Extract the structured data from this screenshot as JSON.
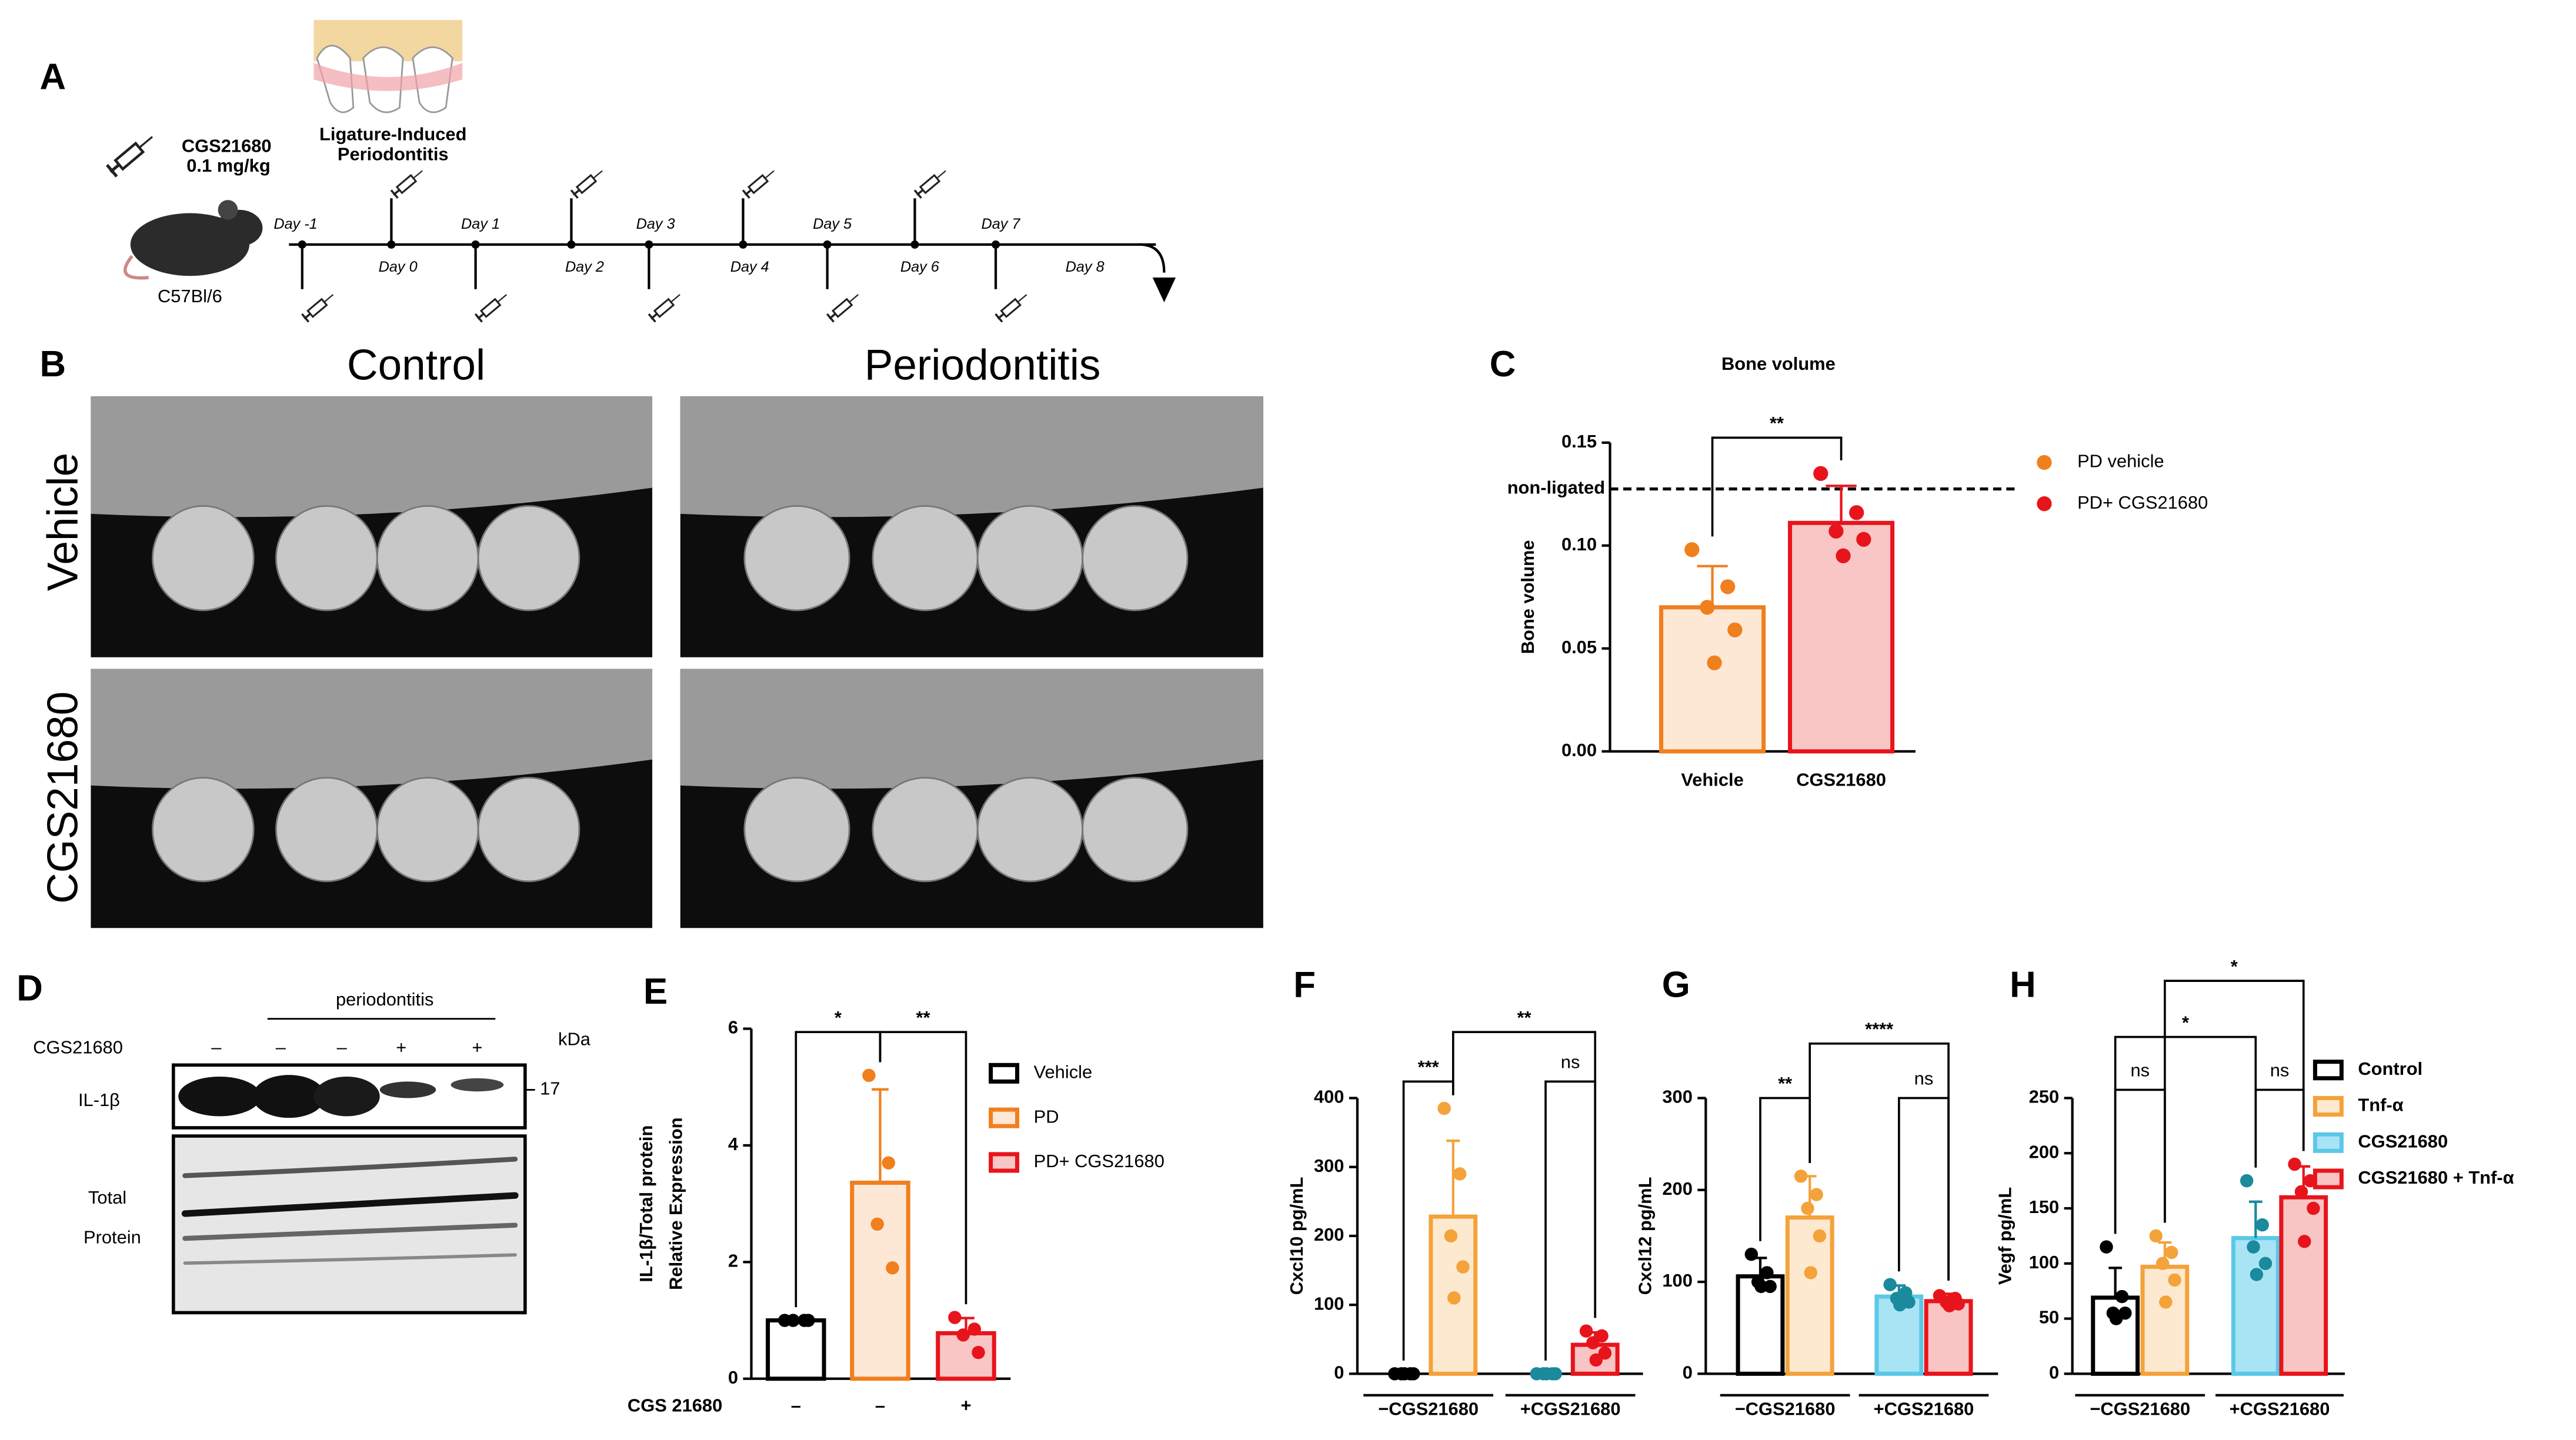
{
  "panel_labels": [
    "A",
    "B",
    "C",
    "D",
    "E",
    "F",
    "G",
    "H"
  ],
  "timeline": {
    "drug": "CGS21680",
    "dose": "0.1 mg/kg",
    "strain": "C57Bl/6",
    "model": [
      "Ligature-Induced",
      "Periodontitis"
    ],
    "days": [
      "Day -1",
      "Day 0",
      "Day 1",
      "Day 2",
      "Day 3",
      "Day 4",
      "Day 5",
      "Day 6",
      "Day 7",
      "Day 8"
    ]
  },
  "micro_ct": {
    "columns": [
      "Control",
      "Periodontitis"
    ],
    "rows": [
      "Vehicle",
      "CGS21680"
    ]
  },
  "western": {
    "group": "periodontitis",
    "treatment": "CGS21680",
    "lanes": [
      "–",
      "–",
      "–",
      "+",
      "+"
    ],
    "unit": "kDa",
    "marker": "17",
    "band_labels": [
      [
        "IL-1β"
      ],
      [
        "Total",
        "Protein"
      ]
    ]
  },
  "chart_data": [
    {
      "type": "bar",
      "title": "Bone volume",
      "ylabel": [
        "Bone volume"
      ],
      "categories": [
        "Vehicle",
        "CGS21680"
      ],
      "values": [
        0.07,
        0.111
      ],
      "errors": [
        0.02,
        0.018
      ],
      "points": [
        [
          0.098,
          0.08,
          0.07,
          0.059,
          0.043
        ],
        [
          0.135,
          0.116,
          0.107,
          0.103,
          0.095
        ]
      ],
      "colors": [
        "#f07f1e",
        "#e8141c"
      ],
      "fills": [
        "#fde8d6",
        "#f9c6c6"
      ],
      "legend": [
        "PD vehicle",
        "PD+ CGS21680"
      ],
      "reference": {
        "label": "non-ligated",
        "value": 0.1275
      },
      "comparisons": [
        {
          "pair": [
            0,
            1
          ],
          "label": "**"
        }
      ],
      "ylim": [
        0,
        0.15
      ],
      "yticks": [
        {
          "value": 0,
          "label": "0.00"
        },
        {
          "value": 0.05,
          "label": "0.05"
        },
        {
          "value": 0.1,
          "label": "0.10"
        },
        {
          "value": 0.15,
          "label": "0.15"
        }
      ]
    },
    {
      "type": "bar",
      "ylabel": [
        "IL-1β/Total protein",
        "Relative Expression"
      ],
      "xlabel": "CGS 21680",
      "categories": [
        "–",
        "–",
        "+"
      ],
      "values": [
        1,
        3.36,
        0.78
      ],
      "errors": [
        0,
        1.6,
        0.26
      ],
      "points": [
        [
          1,
          1,
          1,
          1
        ],
        [
          5.2,
          3.7,
          2.65,
          1.9
        ],
        [
          1.05,
          0.85,
          0.75,
          0.45
        ]
      ],
      "colors": [
        "#000000",
        "#f07f1e",
        "#e8141c"
      ],
      "fills": [
        "#ffffff",
        "#fde8d6",
        "#f9c6c6"
      ],
      "legend": [
        "Vehicle",
        "PD",
        "PD+ CGS21680"
      ],
      "comparisons": [
        {
          "pair": [
            0,
            1
          ],
          "label": "*"
        },
        {
          "pair": [
            1,
            2
          ],
          "label": "**"
        }
      ],
      "ylim": [
        0,
        6
      ],
      "yticks": [
        0,
        2,
        4,
        6
      ]
    },
    {
      "type": "bar",
      "ylabel": [
        "Cxcl10 pg/mL"
      ],
      "groups": [
        "−CGS21680",
        "+CGS21680"
      ],
      "values": [
        0,
        228,
        0,
        42
      ],
      "errors": [
        0,
        110,
        0,
        18
      ],
      "points": [
        [
          0,
          0,
          0,
          0,
          0
        ],
        [
          385,
          290,
          200,
          155,
          110
        ],
        [
          0,
          0,
          0,
          0,
          0
        ],
        [
          62,
          55,
          45,
          30,
          20
        ]
      ],
      "colors": [
        "#000000",
        "#f4a23a",
        "#5bc8e8",
        "#e8141c"
      ],
      "fills": [
        "#ffffff",
        "#fde9d0",
        "#a9e4f5",
        "#f8c4c4"
      ],
      "point_colors": [
        "#000000",
        "#f4a23a",
        "#1a8a9c",
        "#e8141c"
      ],
      "comparisons": [
        {
          "pair": [
            0,
            1
          ],
          "label": "***"
        },
        {
          "pair": [
            2,
            3
          ],
          "label": "ns"
        },
        {
          "pair": [
            1,
            3
          ],
          "label": "**"
        }
      ],
      "ylim": [
        0,
        400
      ],
      "yticks": [
        0,
        100,
        200,
        300,
        400
      ]
    },
    {
      "type": "bar",
      "ylabel": [
        "Cxcl12 pg/mL"
      ],
      "groups": [
        "−CGS21680",
        "+CGS21680"
      ],
      "values": [
        106,
        170,
        84,
        79
      ],
      "errors": [
        20,
        45,
        12,
        8
      ],
      "points": [
        [
          130,
          110,
          100,
          95,
          95
        ],
        [
          215,
          195,
          180,
          150,
          110
        ],
        [
          97,
          88,
          82,
          78,
          75
        ],
        [
          85,
          82,
          78,
          76,
          74
        ]
      ],
      "colors": [
        "#000000",
        "#f4a23a",
        "#5bc8e8",
        "#e8141c"
      ],
      "fills": [
        "#ffffff",
        "#fde9d0",
        "#a9e4f5",
        "#f8c4c4"
      ],
      "point_colors": [
        "#000000",
        "#f4a23a",
        "#1a8a9c",
        "#e8141c"
      ],
      "comparisons": [
        {
          "pair": [
            0,
            1
          ],
          "label": "**"
        },
        {
          "pair": [
            2,
            3
          ],
          "label": "ns"
        },
        {
          "pair": [
            1,
            3
          ],
          "label": "****"
        }
      ],
      "ylim": [
        0,
        300
      ],
      "yticks": [
        0,
        100,
        200,
        300
      ]
    },
    {
      "type": "bar",
      "ylabel": [
        "Vegf pg/mL"
      ],
      "groups": [
        "−CGS21680",
        "+CGS21680"
      ],
      "values": [
        69,
        97,
        123,
        160
      ],
      "errors": [
        27,
        22,
        33,
        28
      ],
      "points": [
        [
          115,
          70,
          55,
          55,
          50
        ],
        [
          125,
          110,
          100,
          85,
          65
        ],
        [
          175,
          135,
          115,
          100,
          90
        ],
        [
          190,
          175,
          165,
          150,
          120
        ]
      ],
      "colors": [
        "#000000",
        "#f4a23a",
        "#5bc8e8",
        "#e8141c"
      ],
      "fills": [
        "#ffffff",
        "#fde9d0",
        "#a9e4f5",
        "#f8c4c4"
      ],
      "point_colors": [
        "#000000",
        "#f4a23a",
        "#1a8a9c",
        "#e8141c"
      ],
      "legend": [
        "Control",
        "Tnf-α",
        "CGS21680",
        "CGS21680 + Tnf-α"
      ],
      "comparisons": [
        {
          "pair": [
            0,
            1
          ],
          "label": "ns"
        },
        {
          "pair": [
            2,
            3
          ],
          "label": "ns"
        },
        {
          "pair": [
            0,
            2
          ],
          "label": "*"
        },
        {
          "pair": [
            1,
            3
          ],
          "label": "*"
        }
      ],
      "ylim": [
        0,
        250
      ],
      "yticks": [
        0,
        50,
        100,
        150,
        200,
        250
      ]
    }
  ]
}
